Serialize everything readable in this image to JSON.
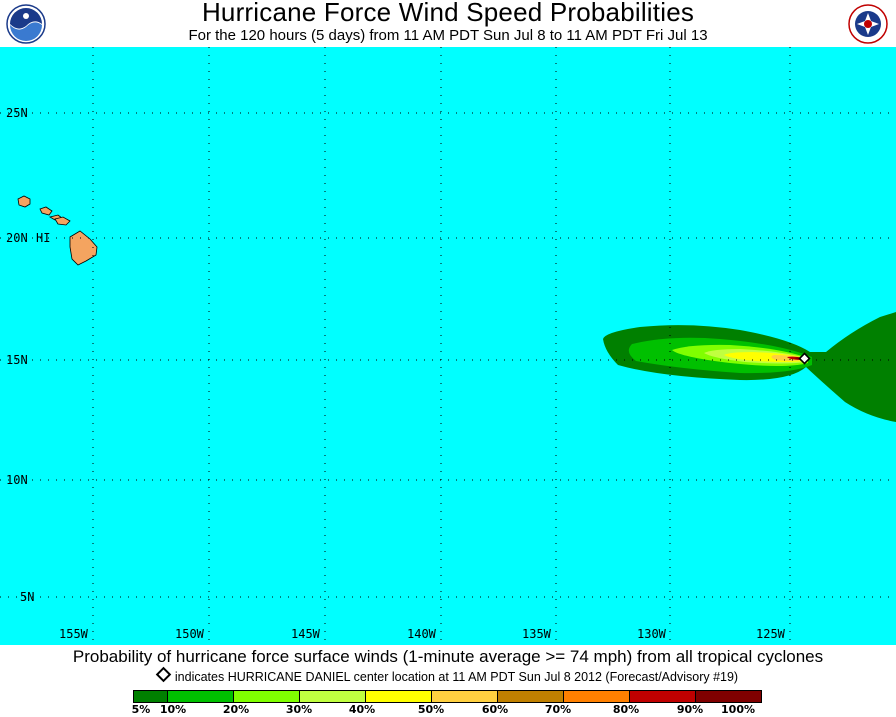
{
  "header": {
    "title": "Hurricane Force Wind Speed Probabilities",
    "subtitle": "For the 120 hours (5 days) from 11 AM PDT Sun Jul 8 to 11 AM PDT Fri Jul 13"
  },
  "logos": {
    "left": "NOAA",
    "right": "NATIONAL WEATHER SERVICE"
  },
  "map": {
    "background_color": "#00ffff",
    "land_color": "#f4a460",
    "latitude_labels": [
      "25N",
      "20N",
      "15N",
      "10N",
      "5N"
    ],
    "longitude_labels": [
      "155W",
      "150W",
      "145W",
      "140W",
      "135W",
      "130W",
      "125W"
    ],
    "place_label": "HI",
    "grid": "dotted"
  },
  "footer": {
    "caption": "Probability of hurricane force surface winds (1-minute average >= 74 mph) from all tropical cyclones",
    "note": "indicates HURRICANE DANIEL center location at 11 AM PDT Sun Jul 8 2012 (Forecast/Advisory #19)"
  },
  "legend": {
    "labels": [
      "5%",
      "10%",
      "20%",
      "30%",
      "40%",
      "50%",
      "60%",
      "70%",
      "80%",
      "90%",
      "100%"
    ],
    "colors": [
      "#008000",
      "#00c000",
      "#80ff00",
      "#c0ff40",
      "#ffff00",
      "#ffd040",
      "#c08000",
      "#ff8000",
      "#c00000",
      "#800000",
      "#800080"
    ]
  }
}
